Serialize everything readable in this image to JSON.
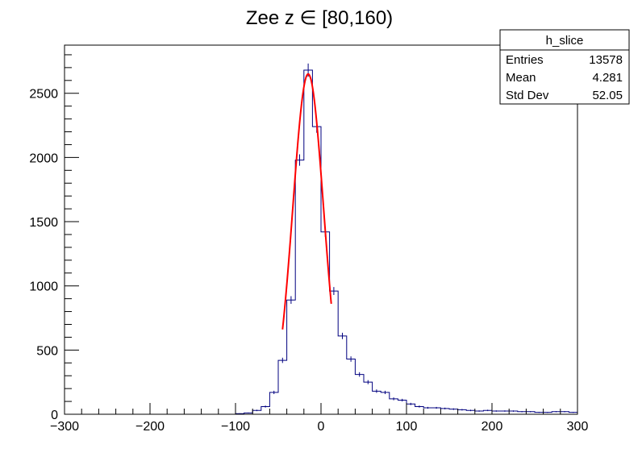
{
  "chart_data": {
    "type": "histogram",
    "title": "Zee z ∈ [80,160)",
    "xlabel": "",
    "ylabel": "",
    "xlim": [
      -300,
      300
    ],
    "ylim": [
      0,
      2875
    ],
    "x_ticks": [
      -300,
      -200,
      -100,
      0,
      100,
      200,
      300
    ],
    "x_tick_labels": [
      "−300",
      "−200",
      "−100",
      "0",
      "100",
      "200",
      "300"
    ],
    "y_ticks": [
      0,
      500,
      1000,
      1500,
      2000,
      2500
    ],
    "y_tick_labels": [
      "0",
      "500",
      "1000",
      "1500",
      "2000",
      "2500"
    ],
    "grid": false,
    "legend": "top-right",
    "colors": {
      "histogram": "#00007f",
      "fit": "#ff0000",
      "frame": "#000000"
    },
    "bins": {
      "edges_start": -300,
      "width": 10,
      "values": [
        0,
        0,
        0,
        0,
        0,
        0,
        0,
        0,
        0,
        0,
        0,
        0,
        0,
        0,
        0,
        0,
        0,
        0,
        0,
        0,
        5,
        10,
        30,
        60,
        170,
        420,
        890,
        1980,
        2680,
        2240,
        1420,
        960,
        610,
        430,
        310,
        250,
        180,
        170,
        120,
        110,
        80,
        60,
        50,
        50,
        45,
        40,
        35,
        30,
        25,
        30,
        25,
        25,
        25,
        20,
        20,
        15,
        15,
        20,
        20,
        15
      ]
    },
    "fit": {
      "name": "gaus",
      "constant": 2650,
      "mean": -15,
      "sigma": 18,
      "range": [
        -45,
        12
      ]
    },
    "stats": {
      "name": "h_slice",
      "rows": [
        {
          "label": "Entries",
          "value": "13578"
        },
        {
          "label": "Mean",
          "value": "4.281"
        },
        {
          "label": "Std Dev",
          "value": "52.05"
        }
      ]
    }
  }
}
